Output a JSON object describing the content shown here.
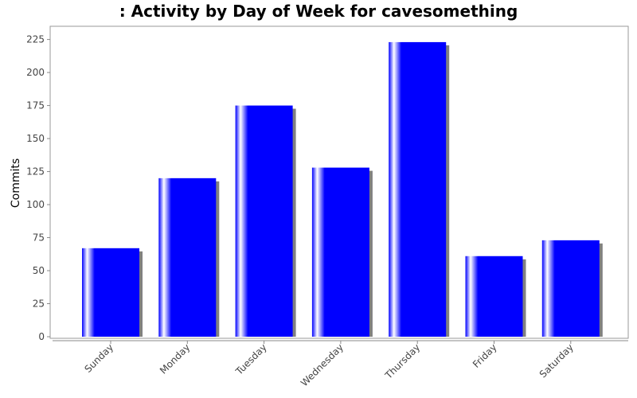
{
  "chart_data": {
    "type": "bar",
    "title": ": Activity by Day of Week for cavesomething",
    "xlabel": "",
    "ylabel": "Commits",
    "categories": [
      "Sunday",
      "Monday",
      "Tuesday",
      "Wednesday",
      "Thursday",
      "Friday",
      "Saturday"
    ],
    "values": [
      67,
      120,
      175,
      128,
      223,
      61,
      73
    ],
    "ylim": [
      0,
      235
    ],
    "yticks": [
      0,
      25,
      50,
      75,
      100,
      125,
      150,
      175,
      200,
      225
    ],
    "grid": false,
    "legend": "none",
    "colors": {
      "bar": "#0000ff",
      "bar_highlight": "#ffffff",
      "shadow": "#808080",
      "axis": "#888888",
      "background": "#ffffff"
    }
  }
}
